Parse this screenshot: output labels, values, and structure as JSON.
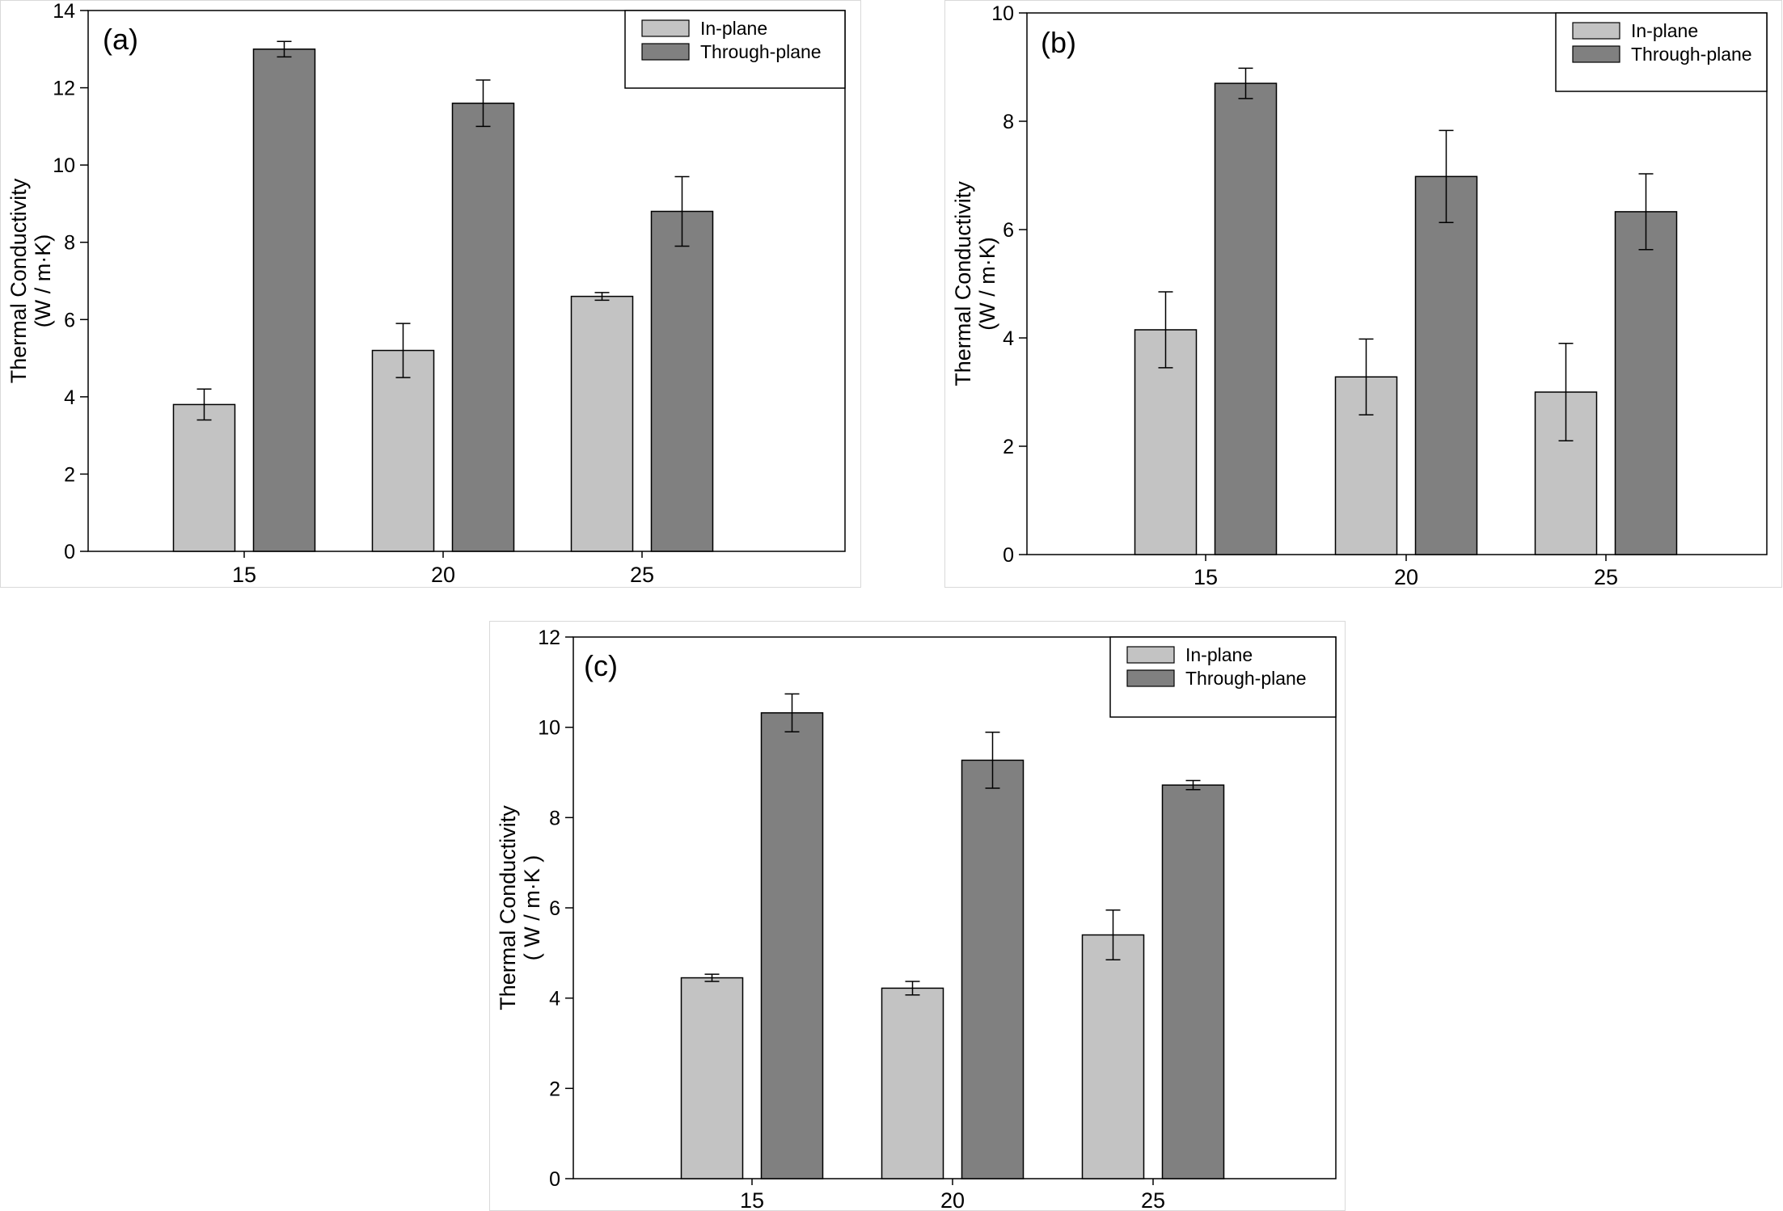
{
  "chart_data": [
    {
      "type": "bar",
      "panel_label": "(a)",
      "ylabel": [
        "Thermal Conductivity",
        "(W / m·K)"
      ],
      "ylim": [
        0,
        14
      ],
      "yticks": [
        0,
        2,
        4,
        6,
        8,
        10,
        12,
        14
      ],
      "categories": [
        "15",
        "20",
        "25"
      ],
      "series": [
        {
          "name": "In-plane",
          "color": "#c3c3c3",
          "values": [
            3.8,
            5.2,
            6.6
          ],
          "errors": [
            0.4,
            0.7,
            0.1
          ]
        },
        {
          "name": "Through-plane",
          "color": "#808080",
          "values": [
            13.0,
            11.6,
            8.8
          ],
          "errors": [
            0.2,
            0.6,
            0.9
          ]
        }
      ],
      "legend_position": "top-right"
    },
    {
      "type": "bar",
      "panel_label": "(b)",
      "ylabel": [
        "Thermal Conductivity",
        "(W / m·K)"
      ],
      "ylim": [
        0,
        10
      ],
      "yticks": [
        0,
        2,
        4,
        6,
        8,
        10
      ],
      "categories": [
        "15",
        "20",
        "25"
      ],
      "series": [
        {
          "name": "In-plane",
          "color": "#c3c3c3",
          "values": [
            4.15,
            3.28,
            3.0
          ],
          "errors": [
            0.7,
            0.7,
            0.9
          ]
        },
        {
          "name": "Through-plane",
          "color": "#808080",
          "values": [
            8.7,
            6.98,
            6.33
          ],
          "errors": [
            0.28,
            0.85,
            0.7
          ]
        }
      ],
      "legend_position": "top-right"
    },
    {
      "type": "bar",
      "panel_label": "(c)",
      "ylabel": [
        "Thermal Conductivity",
        "( W / m·K )"
      ],
      "ylim": [
        0,
        12
      ],
      "yticks": [
        0,
        2,
        4,
        6,
        8,
        10,
        12
      ],
      "categories": [
        "15",
        "20",
        "25"
      ],
      "series": [
        {
          "name": "In-plane",
          "color": "#c3c3c3",
          "values": [
            4.45,
            4.22,
            5.4
          ],
          "errors": [
            0.08,
            0.15,
            0.55
          ]
        },
        {
          "name": "Through-plane",
          "color": "#808080",
          "values": [
            10.32,
            9.27,
            8.72
          ],
          "errors": [
            0.42,
            0.62,
            0.1
          ]
        }
      ],
      "legend_position": "top-right"
    }
  ]
}
